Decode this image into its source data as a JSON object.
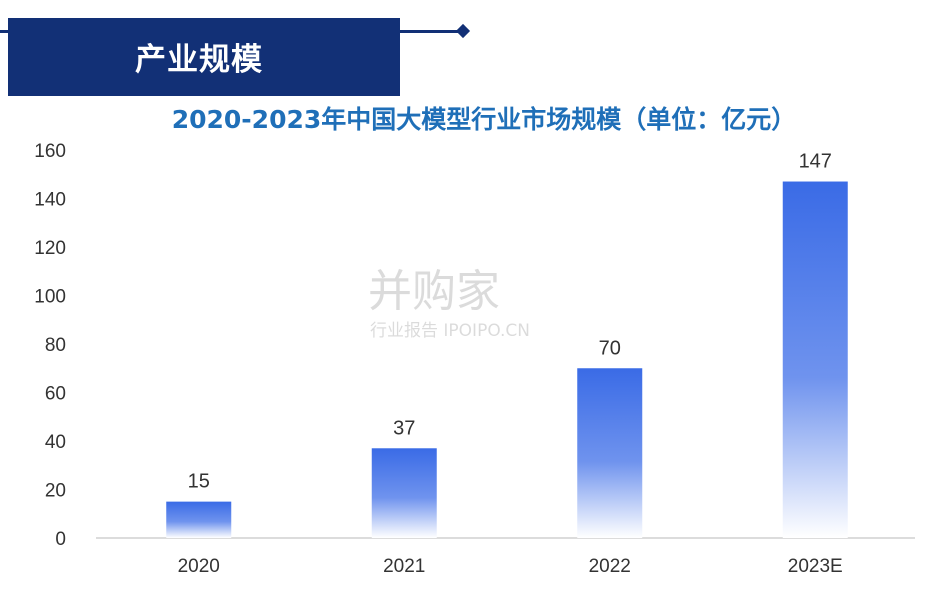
{
  "header": {
    "title": "产业规模"
  },
  "watermark": {
    "name": "并购家",
    "sub": "行业报告 IPOIPO.CN"
  },
  "chart_data": {
    "type": "bar",
    "title": "2020-2023年中国大模型行业市场规模（单位：亿元）",
    "categories": [
      "2020",
      "2021",
      "2022",
      "2023E"
    ],
    "values": [
      15,
      37,
      70,
      147
    ],
    "data_labels": [
      "15",
      "37",
      "70",
      "147"
    ],
    "ylim": [
      0,
      160
    ],
    "yticks": [
      "0",
      "20",
      "40",
      "60",
      "80",
      "100",
      "120",
      "140",
      "160"
    ],
    "xlabel": "",
    "ylabel": "",
    "grid": false,
    "bar_color_top": "#3a6be6",
    "bar_color_bottom": "#ffffff"
  }
}
